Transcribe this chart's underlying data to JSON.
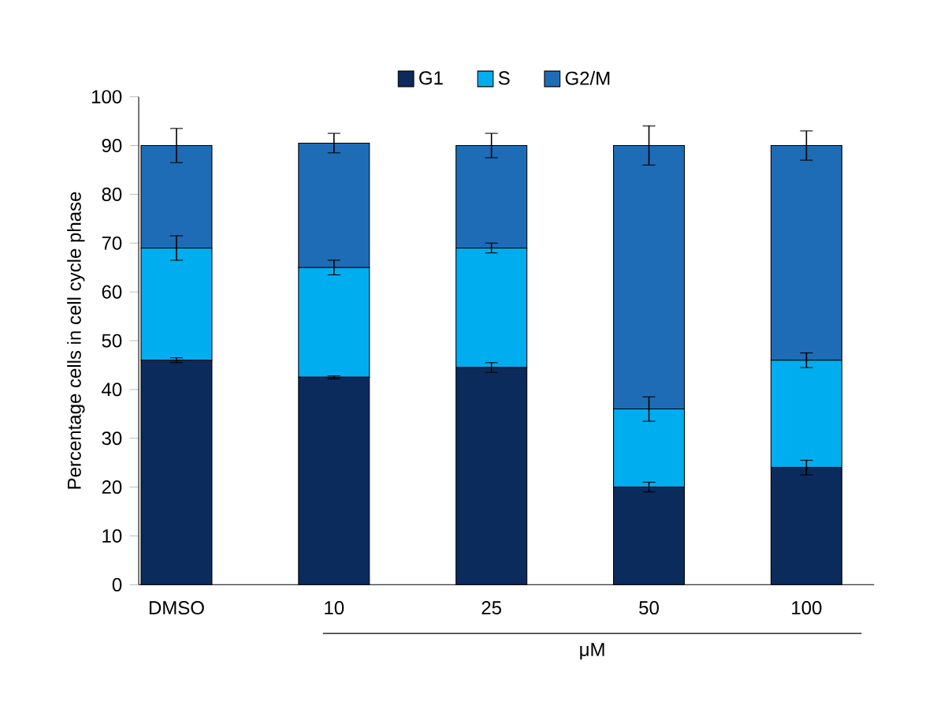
{
  "chart_data": {
    "type": "bar",
    "stacked": true,
    "ylabel": "Percentage cells in cell cycle phase",
    "xlabel": "μM",
    "categories": [
      "DMSO",
      "10",
      "25",
      "50",
      "100"
    ],
    "series": [
      {
        "name": "G1",
        "color": "#0b2b5c",
        "values": [
          46,
          42.5,
          44.5,
          20,
          24
        ],
        "errors": [
          0.5,
          0.3,
          1,
          1,
          1.5
        ]
      },
      {
        "name": "S",
        "color": "#00aeef",
        "values": [
          23,
          22.5,
          24.5,
          16,
          22
        ],
        "errors": [
          2.5,
          1.5,
          1,
          2.5,
          1.5
        ]
      },
      {
        "name": "G2/M",
        "color": "#1f6cb6",
        "values": [
          21,
          25.5,
          21,
          54,
          44
        ],
        "errors": [
          3.5,
          2,
          2.5,
          4,
          3
        ]
      }
    ],
    "ylim": [
      0,
      100
    ],
    "yticks": [
      0,
      10,
      20,
      30,
      40,
      50,
      60,
      70,
      80,
      90,
      100
    ],
    "legend": "top",
    "grid": false
  }
}
